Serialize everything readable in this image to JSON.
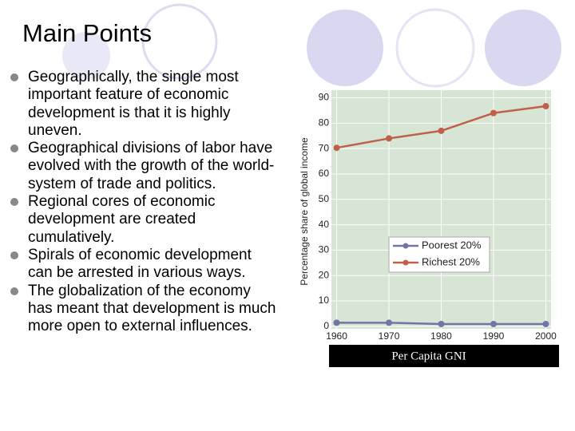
{
  "title": "Main Points",
  "bullets": [
    "Geographically, the single most important feature of economic development is that it is highly uneven.",
    "Geographical divisions of labor have evolved with the growth of the world-system of trade and politics.",
    "Regional cores of economic development are created cumulatively.",
    "Spirals of economic development can be arrested in various ways.",
    "The globalization of the economy has meant that development is much more open to external influences."
  ],
  "chart_data": {
    "type": "line",
    "y_label": "Percentage share of global income",
    "caption": "Per Capita GNI",
    "x": [
      1960,
      1970,
      1980,
      1990,
      2000
    ],
    "series": [
      {
        "name": "Poorest 20%",
        "color": "#7474a6",
        "values": [
          1.4,
          1.4,
          0.9,
          0.9,
          0.9
        ]
      },
      {
        "name": "Richest 20%",
        "color": "#c0604a",
        "values": [
          70.3,
          74,
          77,
          84,
          86.7
        ]
      }
    ],
    "xlim": [
      1959,
      2001
    ],
    "ylim": [
      -1,
      93
    ],
    "xticks": [
      1960,
      1970,
      1980,
      1990,
      2000
    ],
    "yticks": [
      0,
      10,
      20,
      30,
      40,
      50,
      60,
      70,
      80,
      90
    ],
    "grid": true,
    "background": "#d6e5d4"
  }
}
